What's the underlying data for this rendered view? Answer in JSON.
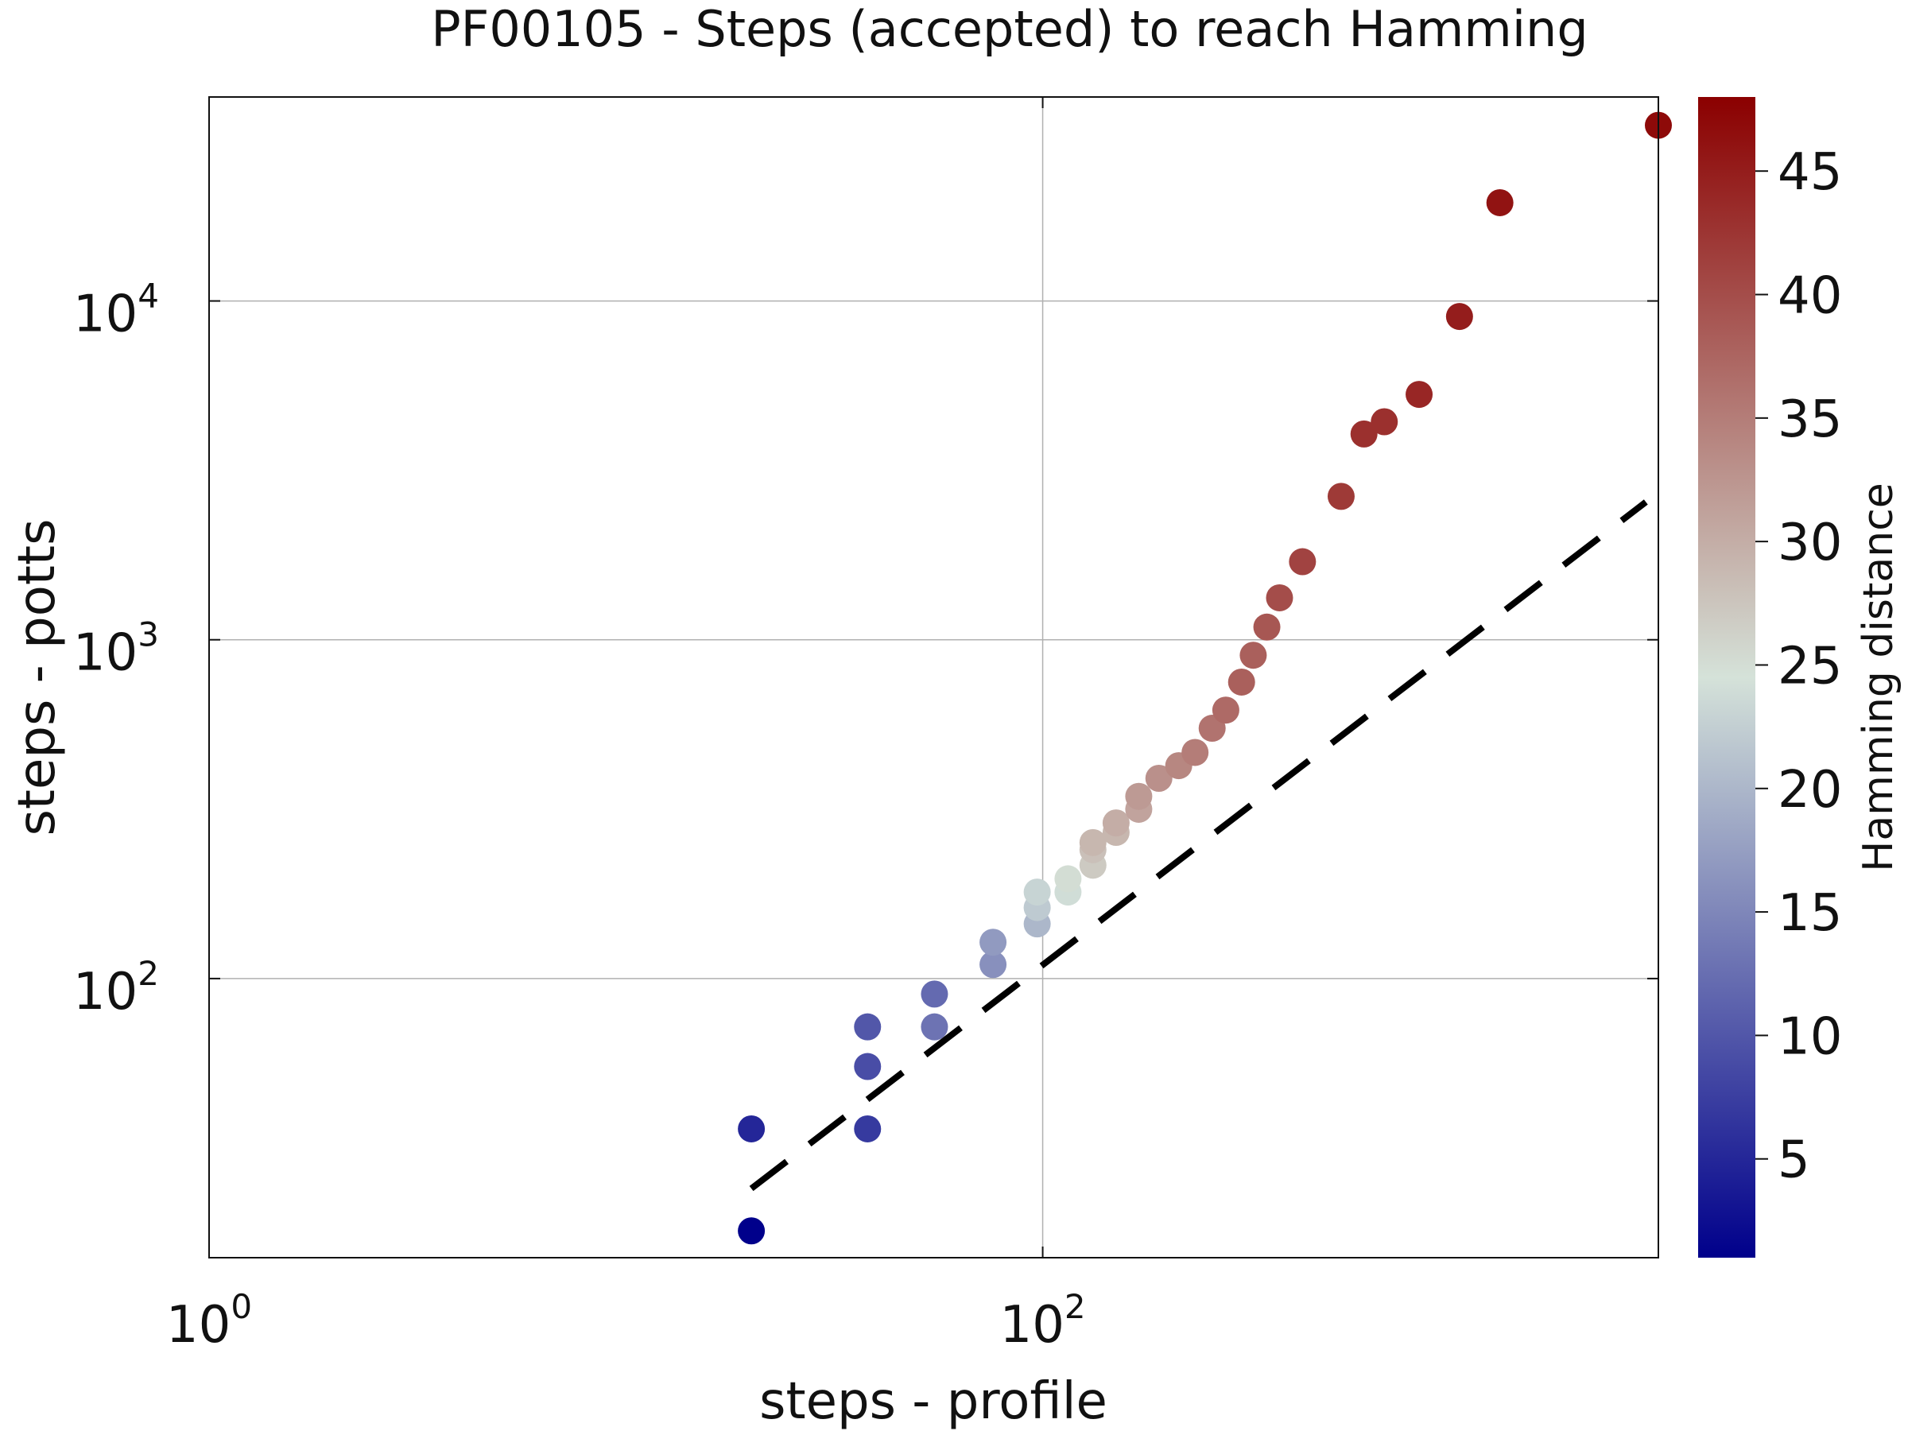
{
  "chart_data": {
    "type": "scatter",
    "title": "PF00105 - Steps (accepted) to reach Hamming",
    "xlabel": "steps - profile",
    "ylabel": "steps - potts",
    "xscale": "log",
    "yscale": "log",
    "xlim": [
      1,
      3000
    ],
    "ylim": [
      15,
      40000
    ],
    "grid": true,
    "x_ticks": [
      {
        "value": 1,
        "base": "10",
        "exp": "0"
      },
      {
        "value": 100,
        "base": "10",
        "exp": "2"
      }
    ],
    "y_ticks": [
      {
        "value": 100,
        "base": "10",
        "exp": "2"
      },
      {
        "value": 1000,
        "base": "10",
        "exp": "3"
      },
      {
        "value": 10000,
        "base": "10",
        "exp": "4"
      }
    ],
    "reference_line": {
      "style": "dashed",
      "color": "#000000",
      "x": [
        20,
        2800
      ],
      "y": [
        24,
        2550
      ]
    },
    "colorbar": {
      "label": "Hamming distance",
      "range": [
        1,
        48
      ],
      "ticks": [
        "5",
        "10",
        "15",
        "20",
        "25",
        "30",
        "35",
        "40",
        "45"
      ],
      "colormap": [
        "#00008b",
        "#d5e2d9",
        "#8b0000"
      ]
    },
    "points": [
      {
        "x": 20,
        "y": 18,
        "hamming": 1
      },
      {
        "x": 20,
        "y": 36,
        "hamming": 5
      },
      {
        "x": 38,
        "y": 36,
        "hamming": 7
      },
      {
        "x": 38,
        "y": 55,
        "hamming": 9
      },
      {
        "x": 38,
        "y": 72,
        "hamming": 10
      },
      {
        "x": 55,
        "y": 72,
        "hamming": 13
      },
      {
        "x": 55,
        "y": 90,
        "hamming": 12
      },
      {
        "x": 76,
        "y": 110,
        "hamming": 16
      },
      {
        "x": 76,
        "y": 128,
        "hamming": 17
      },
      {
        "x": 97,
        "y": 145,
        "hamming": 20
      },
      {
        "x": 97,
        "y": 162,
        "hamming": 22
      },
      {
        "x": 97,
        "y": 180,
        "hamming": 23
      },
      {
        "x": 115,
        "y": 180,
        "hamming": 24
      },
      {
        "x": 115,
        "y": 197,
        "hamming": 25
      },
      {
        "x": 132,
        "y": 216,
        "hamming": 27
      },
      {
        "x": 132,
        "y": 240,
        "hamming": 28
      },
      {
        "x": 132,
        "y": 252,
        "hamming": 29
      },
      {
        "x": 150,
        "y": 270,
        "hamming": 29
      },
      {
        "x": 150,
        "y": 288,
        "hamming": 30
      },
      {
        "x": 170,
        "y": 316,
        "hamming": 31
      },
      {
        "x": 170,
        "y": 345,
        "hamming": 32
      },
      {
        "x": 190,
        "y": 390,
        "hamming": 33
      },
      {
        "x": 212,
        "y": 425,
        "hamming": 34
      },
      {
        "x": 232,
        "y": 465,
        "hamming": 35
      },
      {
        "x": 255,
        "y": 548,
        "hamming": 36
      },
      {
        "x": 275,
        "y": 620,
        "hamming": 37
      },
      {
        "x": 300,
        "y": 750,
        "hamming": 38
      },
      {
        "x": 320,
        "y": 900,
        "hamming": 38
      },
      {
        "x": 345,
        "y": 1090,
        "hamming": 39
      },
      {
        "x": 370,
        "y": 1330,
        "hamming": 40
      },
      {
        "x": 420,
        "y": 1700,
        "hamming": 41
      },
      {
        "x": 520,
        "y": 2650,
        "hamming": 42
      },
      {
        "x": 590,
        "y": 4050,
        "hamming": 43
      },
      {
        "x": 660,
        "y": 4400,
        "hamming": 43
      },
      {
        "x": 800,
        "y": 5300,
        "hamming": 44
      },
      {
        "x": 1000,
        "y": 9000,
        "hamming": 45
      },
      {
        "x": 1250,
        "y": 19500,
        "hamming": 46
      },
      {
        "x": 3000,
        "y": 33000,
        "hamming": 47
      }
    ]
  }
}
